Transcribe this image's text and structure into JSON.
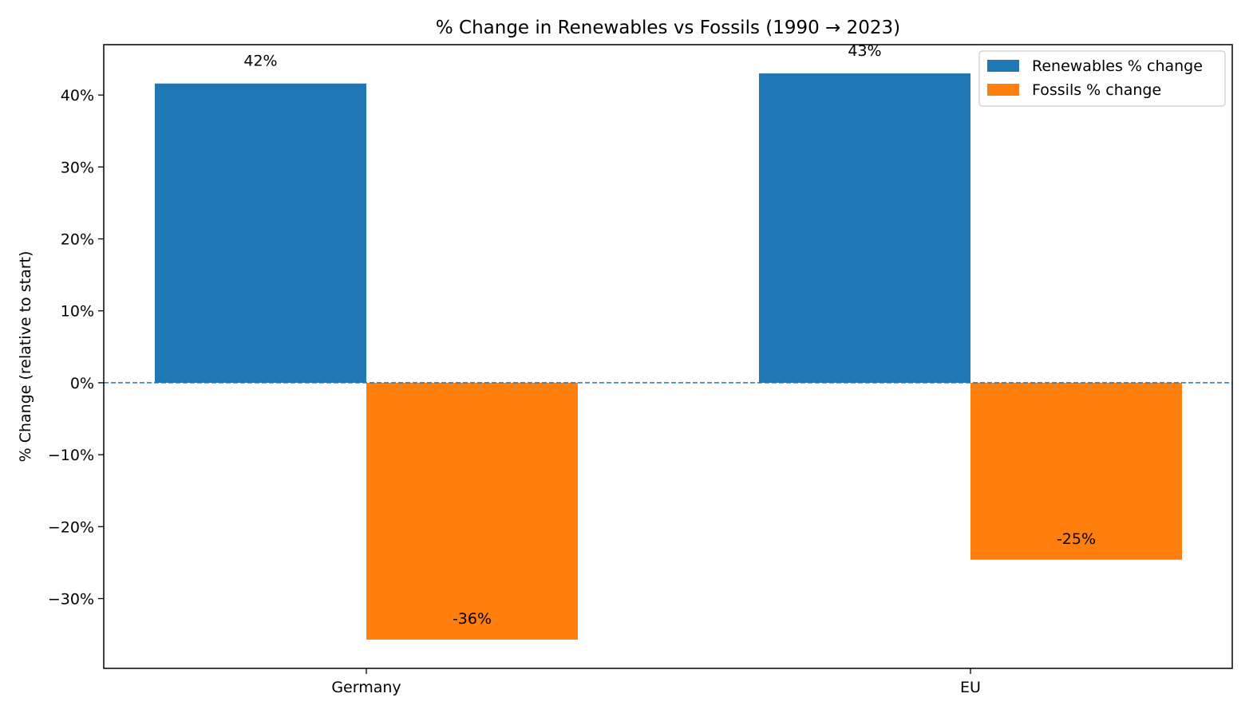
{
  "chart_data": {
    "type": "bar",
    "title": "% Change in Renewables vs Fossils (1990 → 2023)",
    "xlabel": "",
    "ylabel": "% Change (relative to start)",
    "categories": [
      "Germany",
      "EU"
    ],
    "series": [
      {
        "name": "Renewables % change",
        "color": "#1f77b4",
        "values": [
          41.6,
          43.0
        ],
        "labels": [
          "42%",
          "43%"
        ]
      },
      {
        "name": "Fossils % change",
        "color": "#ff7f0e",
        "values": [
          -35.7,
          -24.6
        ],
        "labels": [
          "-36%",
          "-25%"
        ]
      }
    ],
    "ylim": [
      -39.7,
      47.0
    ],
    "yticks": [
      -30,
      -20,
      -10,
      0,
      10,
      20,
      30,
      40
    ],
    "ytick_labels": [
      "−30%",
      "−20%",
      "−10%",
      "0%",
      "10%",
      "20%",
      "30%",
      "40%"
    ],
    "zero_line": {
      "style": "dashed",
      "color": "#1f77b4"
    },
    "grid": false,
    "legend_position": "top-right"
  }
}
